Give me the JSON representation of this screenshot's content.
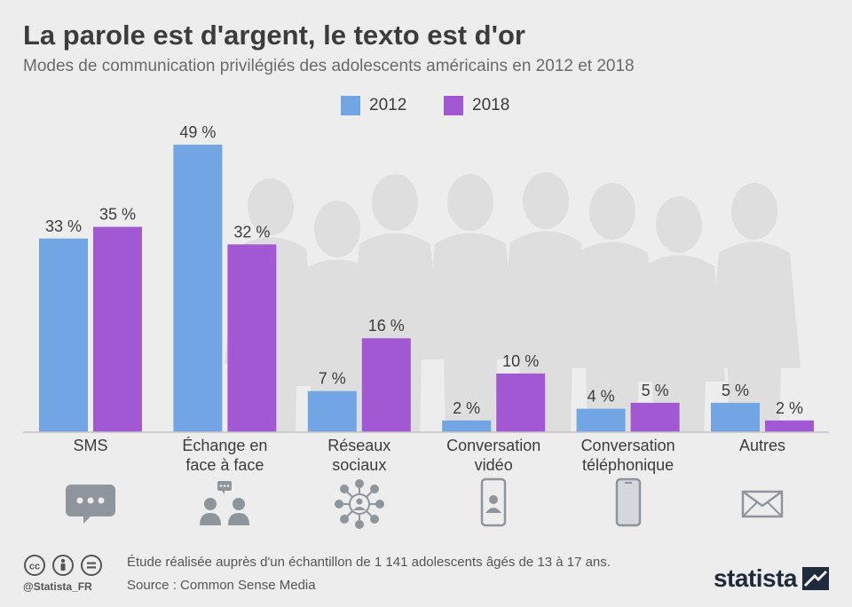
{
  "chart_data": {
    "type": "bar",
    "title": "La parole est d'argent, le texto est d'or",
    "subtitle": "Modes de communication privilégiés des adolescents américains en 2012 et 2018",
    "categories": [
      "SMS",
      "Échange en face à face",
      "Réseaux sociaux",
      "Conversation vidéo",
      "Conversation téléphonique",
      "Autres"
    ],
    "category_lines": [
      [
        "SMS"
      ],
      [
        "Échange en",
        "face à face"
      ],
      [
        "Réseaux",
        "sociaux"
      ],
      [
        "Conversation",
        "vidéo"
      ],
      [
        "Conversation",
        "téléphonique"
      ],
      [
        "Autres"
      ]
    ],
    "series": [
      {
        "name": "2012",
        "color": "#72a5e3",
        "values": [
          33,
          49,
          7,
          2,
          4,
          5
        ]
      },
      {
        "name": "2018",
        "color": "#a257d3",
        "values": [
          35,
          32,
          16,
          10,
          5,
          2
        ]
      }
    ],
    "value_suffix": " %",
    "ylim": [
      0,
      50
    ],
    "legend_position": "top-center",
    "grid": false
  },
  "icons": [
    "chat-bubble-icon",
    "two-people-icon",
    "social-network-icon",
    "video-call-phone-icon",
    "smartphone-icon",
    "envelope-icon"
  ],
  "footer": {
    "note": "Étude réalisée auprès d'un échantillon de 1 141 adolescents âgés de 13 à 17 ans.",
    "source": "Source : Common Sense Media",
    "handle": "@Statista_FR",
    "brand": "statista"
  },
  "colors": {
    "background": "#ededed",
    "icon": "#8e959c",
    "silhouette": "#dedede"
  }
}
